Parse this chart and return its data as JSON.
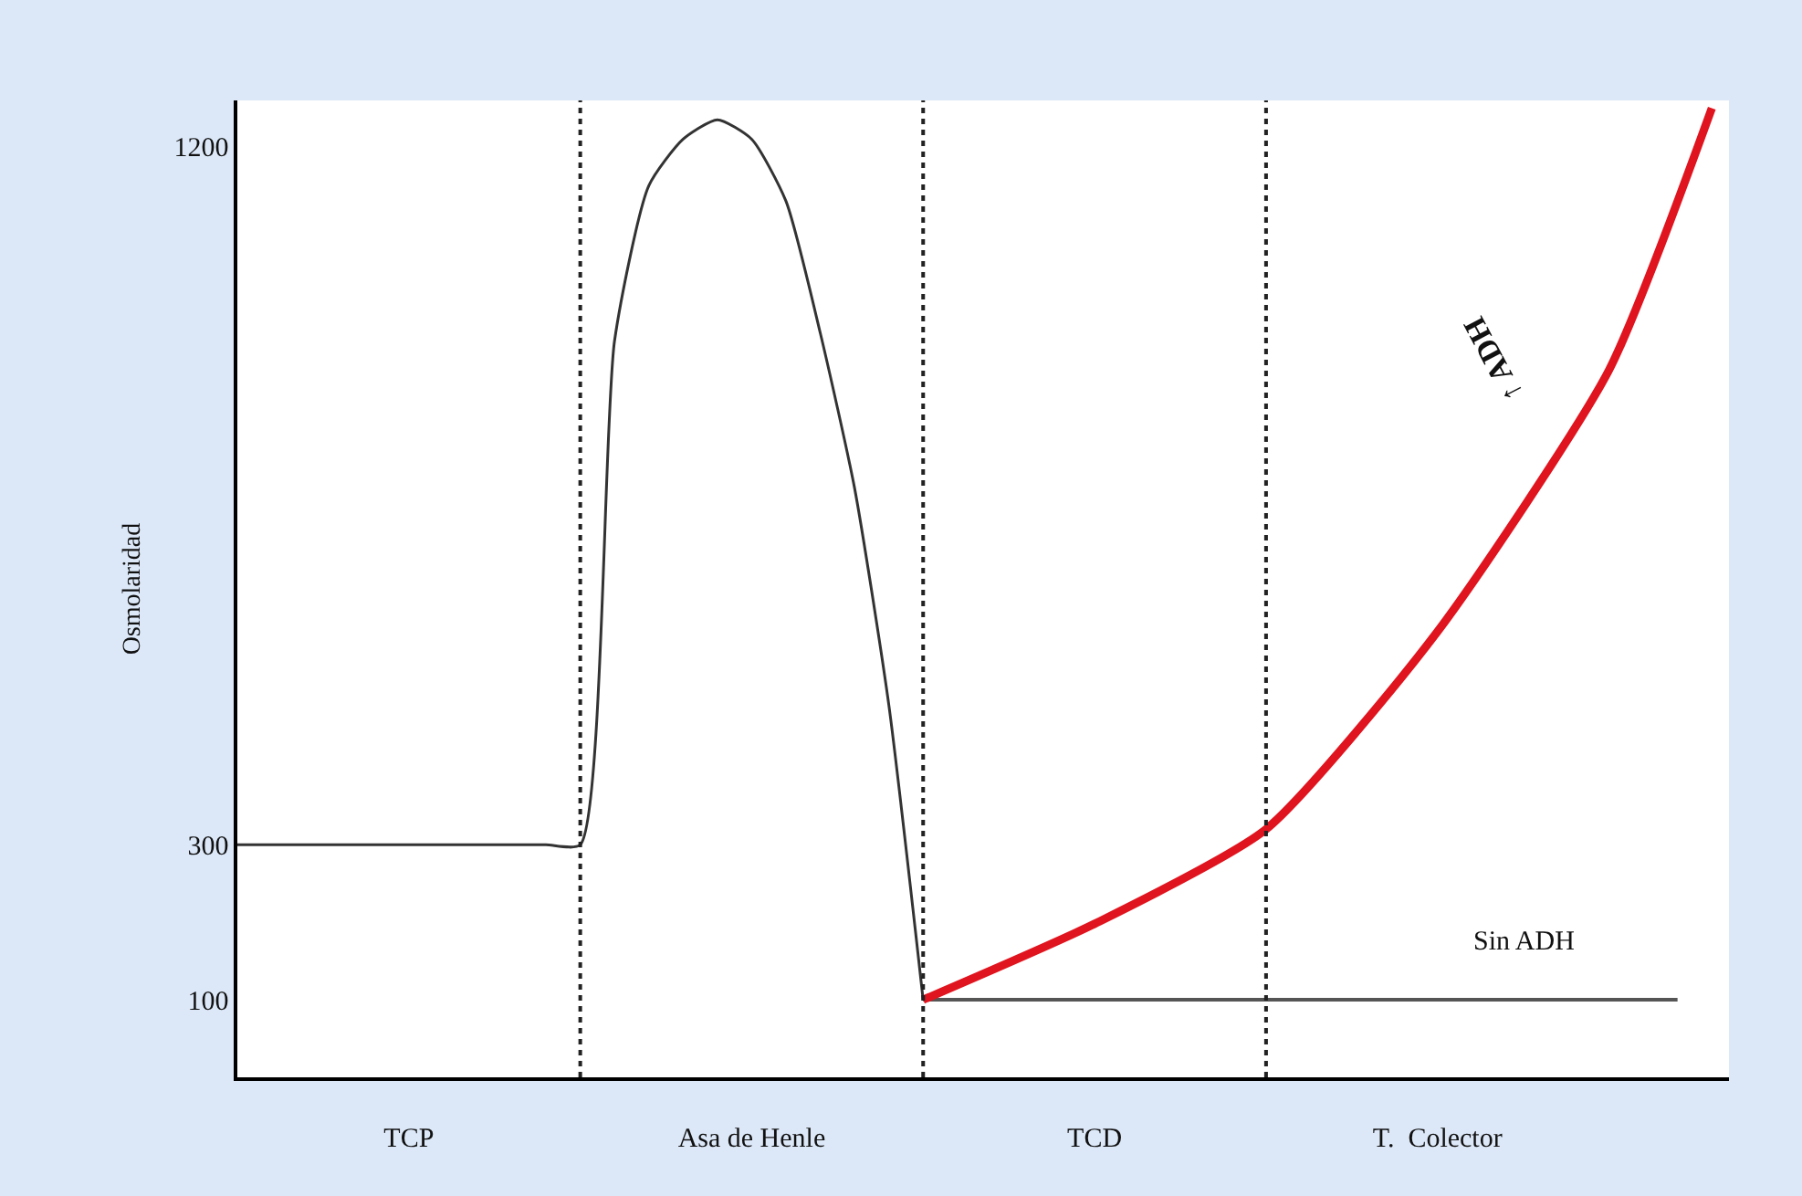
{
  "chart_data": {
    "type": "line",
    "ylabel": "Osmolaridad",
    "categories": [
      null,
      null,
      null,
      null,
      null,
      "TCP",
      null,
      null,
      null,
      null,
      null,
      null,
      null,
      null,
      null,
      "Asa de Henle",
      null,
      null,
      null,
      null,
      null,
      null,
      null,
      null,
      null,
      "TCD",
      null,
      null,
      null,
      null,
      null,
      null,
      null,
      null,
      null,
      "T.  Colector",
      null,
      null,
      null,
      null,
      null,
      null,
      null,
      null
    ],
    "ylim": [
      0,
      1260
    ],
    "yticks": [
      100,
      300,
      1200
    ],
    "grid": "x",
    "line_style": "solid",
    "marker": "none",
    "series": [
      {
        "color": "#333333",
        "values": [
          300,
          300,
          300,
          300,
          300,
          300,
          300,
          300,
          300,
          300,
          300,
          950,
          1150,
          1210,
          1235,
          1210,
          1130,
          960,
          760,
          480,
          100,
          null,
          null,
          null,
          null,
          null,
          null,
          null,
          null,
          null,
          null,
          null,
          null,
          null,
          null,
          null,
          null,
          null,
          null,
          null,
          null,
          null,
          null,
          null
        ]
      },
      {
        "color": "#555555",
        "values": [
          null,
          null,
          null,
          null,
          null,
          null,
          null,
          null,
          null,
          null,
          null,
          null,
          null,
          null,
          null,
          null,
          null,
          null,
          null,
          null,
          100,
          100,
          100,
          100,
          100,
          100,
          100,
          100,
          100,
          100,
          100,
          100,
          100,
          100,
          100,
          100,
          100,
          100,
          100,
          100,
          100,
          100,
          100,
          null
        ]
      },
      {
        "color": "#e0141e",
        "values": [
          null,
          null,
          null,
          null,
          null,
          null,
          null,
          null,
          null,
          null,
          null,
          null,
          null,
          null,
          null,
          null,
          null,
          null,
          null,
          null,
          100,
          null,
          null,
          null,
          null,
          198,
          null,
          null,
          null,
          null,
          320,
          null,
          null,
          null,
          null,
          575,
          null,
          null,
          null,
          null,
          912,
          null,
          null,
          1250
        ]
      }
    ],
    "annotations": [
      "Sin ADH",
      "↑ ADH"
    ]
  }
}
